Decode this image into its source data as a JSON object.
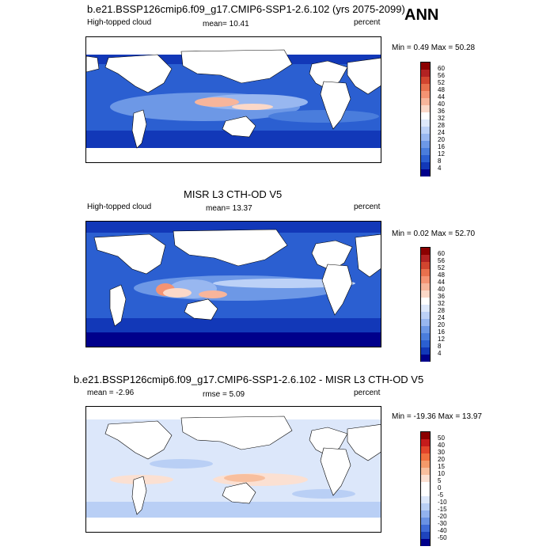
{
  "season": "ANN",
  "panels": [
    {
      "title": "b.e21.BSSP126cmip6.f09_g17.CMIP6-SSP1-2.6.102 (yrs 2075-2099)",
      "left_label": "High-topped cloud",
      "center_label": "mean=  10.41",
      "right_label": "percent",
      "minmax": "Min =   0.49 Max =  50.28",
      "colorbar_labels": [
        "60",
        "56",
        "52",
        "48",
        "44",
        "40",
        "36",
        "32",
        "28",
        "24",
        "20",
        "16",
        "12",
        "8",
        "4"
      ],
      "colors": [
        "#8b0000",
        "#b22222",
        "#d2452f",
        "#e8704d",
        "#f49373",
        "#f7b59b",
        "#fbd8c8",
        "#ffffff",
        "#dde8fb",
        "#bcd1f7",
        "#98b7f0",
        "#6d98e6",
        "#4a7ddc",
        "#2b5fd1",
        "#1238b8",
        "#00008b"
      ]
    },
    {
      "title": "MISR L3 CTH-OD V5",
      "left_label": "High-topped cloud",
      "center_label": "mean=  13.37",
      "right_label": "percent",
      "minmax": "Min =   0.02 Max =  52.70",
      "colorbar_labels": [
        "60",
        "56",
        "52",
        "48",
        "44",
        "40",
        "36",
        "32",
        "28",
        "24",
        "20",
        "16",
        "12",
        "8",
        "4"
      ],
      "colors": [
        "#8b0000",
        "#b22222",
        "#d2452f",
        "#e8704d",
        "#f49373",
        "#f7b59b",
        "#fbd8c8",
        "#ffffff",
        "#dde8fb",
        "#bcd1f7",
        "#98b7f0",
        "#6d98e6",
        "#4a7ddc",
        "#2b5fd1",
        "#1238b8",
        "#00008b"
      ]
    },
    {
      "title": "b.e21.BSSP126cmip6.f09_g17.CMIP6-SSP1-2.6.102 - MISR L3 CTH-OD V5",
      "left_label": "mean =  -2.96",
      "center_label": "rmse =   5.09",
      "right_label": "percent",
      "minmax": "Min = -19.36 Max =  13.97",
      "colorbar_labels": [
        "50",
        "40",
        "30",
        "20",
        "15",
        "10",
        "5",
        "0",
        "-5",
        "-10",
        "-15",
        "-20",
        "-30",
        "-40",
        "-50"
      ],
      "colors": [
        "#8b0000",
        "#c51b1b",
        "#e2442a",
        "#f0703f",
        "#f59a6a",
        "#f8bf9e",
        "#fbe0d2",
        "#ffffff",
        "#ffffff",
        "#dce7fa",
        "#b9cff5",
        "#92b2ee",
        "#6a92e3",
        "#3f6bd6",
        "#1e44bd",
        "#00008b"
      ]
    }
  ]
}
